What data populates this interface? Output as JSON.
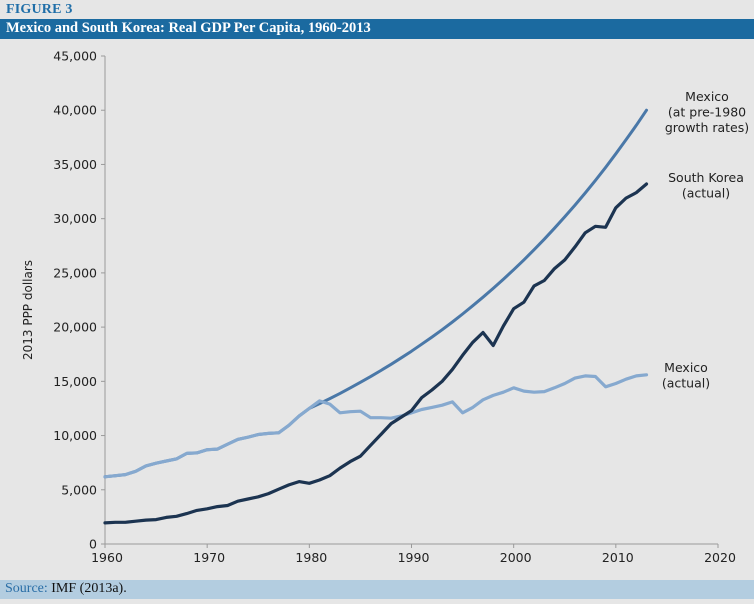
{
  "figure": {
    "label": "FIGURE 3",
    "title": "Mexico and South Korea: Real GDP Per Capita, 1960-2013"
  },
  "source": {
    "label": "Source:",
    "text": " IMF (2013a)."
  },
  "colors": {
    "title_bar": "#1b6aa0",
    "source_bar": "#b3cde0",
    "mexico_counterfactual": "#4a78a8",
    "south_korea": "#1c3451",
    "mexico_actual": "#86a9cf"
  },
  "chart_data": {
    "type": "line",
    "title": "Mexico and South Korea: Real GDP Per Capita, 1960-2013",
    "xlabel": "",
    "ylabel": "2013 PPP dollars",
    "xlim": [
      1960,
      2020
    ],
    "ylim": [
      0,
      45000
    ],
    "xticks": [
      1960,
      1970,
      1980,
      1990,
      2000,
      2010,
      2020
    ],
    "xtick_labels": [
      "1960",
      "1970",
      "1980",
      "1990",
      "2000",
      "2010",
      "2020"
    ],
    "yticks": [
      0,
      5000,
      10000,
      15000,
      20000,
      25000,
      30000,
      35000,
      40000,
      45000
    ],
    "ytick_labels": [
      "0",
      "5,000",
      "10,000",
      "15,000",
      "20,000",
      "25,000",
      "30,000",
      "35,000",
      "40,000",
      "45,000"
    ],
    "grid": false,
    "legend": "inline labels at right end of each series",
    "series": [
      {
        "key": "mexico_counterfactual",
        "name": "Mexico (at pre-1980 growth rates)",
        "label_lines": [
          "Mexico",
          "(at pre-1980",
          "growth rates)"
        ],
        "x": [
          1960,
          1961,
          1962,
          1963,
          1964,
          1965,
          1966,
          1967,
          1968,
          1969,
          1970,
          1971,
          1972,
          1973,
          1974,
          1975,
          1976,
          1977,
          1978,
          1979,
          1980,
          1981,
          1982,
          1983,
          1984,
          1985,
          1986,
          1987,
          1988,
          1989,
          1990,
          1991,
          1992,
          1993,
          1994,
          1995,
          1996,
          1997,
          1998,
          1999,
          2000,
          2001,
          2002,
          2003,
          2004,
          2005,
          2006,
          2007,
          2008,
          2009,
          2010,
          2011,
          2012,
          2013
        ],
        "values": [
          6200,
          6300,
          6400,
          6700,
          7200,
          7450,
          7650,
          7850,
          8350,
          8400,
          8700,
          8750,
          9200,
          9650,
          9850,
          10100,
          10200,
          10250,
          10950,
          11800,
          12500,
          12950,
          13410,
          13890,
          14390,
          14910,
          15440,
          16000,
          16570,
          17170,
          17780,
          18420,
          19080,
          19760,
          20470,
          21210,
          21970,
          22760,
          23570,
          24420,
          25290,
          26200,
          27140,
          28110,
          29120,
          30170,
          31250,
          32370,
          33530,
          34730,
          35980,
          37270,
          38610,
          40000
        ]
      },
      {
        "key": "south_korea",
        "name": "South Korea (actual)",
        "label_lines": [
          "South Korea",
          "(actual)"
        ],
        "x": [
          1960,
          1961,
          1962,
          1963,
          1964,
          1965,
          1966,
          1967,
          1968,
          1969,
          1970,
          1971,
          1972,
          1973,
          1974,
          1975,
          1976,
          1977,
          1978,
          1979,
          1980,
          1981,
          1982,
          1983,
          1984,
          1985,
          1986,
          1987,
          1988,
          1989,
          1990,
          1991,
          1992,
          1993,
          1994,
          1995,
          1996,
          1997,
          1998,
          1999,
          2000,
          2001,
          2002,
          2003,
          2004,
          2005,
          2006,
          2007,
          2008,
          2009,
          2010,
          2011,
          2012,
          2013
        ],
        "values": [
          1950,
          2000,
          2000,
          2100,
          2200,
          2250,
          2450,
          2550,
          2800,
          3100,
          3250,
          3450,
          3550,
          3950,
          4150,
          4350,
          4650,
          5050,
          5450,
          5750,
          5600,
          5900,
          6300,
          7000,
          7600,
          8100,
          9100,
          10100,
          11100,
          11700,
          12300,
          13500,
          14200,
          15000,
          16100,
          17400,
          18600,
          19500,
          18300,
          20100,
          21700,
          22300,
          23800,
          24300,
          25400,
          26200,
          27400,
          28700,
          29300,
          29200,
          31000,
          31900,
          32400,
          33200
        ]
      },
      {
        "key": "mexico_actual",
        "name": "Mexico (actual)",
        "label_lines": [
          "Mexico",
          "(actual)"
        ],
        "x": [
          1960,
          1961,
          1962,
          1963,
          1964,
          1965,
          1966,
          1967,
          1968,
          1969,
          1970,
          1971,
          1972,
          1973,
          1974,
          1975,
          1976,
          1977,
          1978,
          1979,
          1980,
          1981,
          1982,
          1983,
          1984,
          1985,
          1986,
          1987,
          1988,
          1989,
          1990,
          1991,
          1992,
          1993,
          1994,
          1995,
          1996,
          1997,
          1998,
          1999,
          2000,
          2001,
          2002,
          2003,
          2004,
          2005,
          2006,
          2007,
          2008,
          2009,
          2010,
          2011,
          2012,
          2013
        ],
        "values": [
          6200,
          6300,
          6400,
          6700,
          7200,
          7450,
          7650,
          7850,
          8350,
          8400,
          8700,
          8750,
          9200,
          9650,
          9850,
          10100,
          10200,
          10250,
          10950,
          11800,
          12500,
          13200,
          12900,
          12100,
          12200,
          12250,
          11650,
          11650,
          11600,
          11800,
          12100,
          12400,
          12600,
          12800,
          13100,
          12100,
          12600,
          13300,
          13700,
          14000,
          14400,
          14100,
          14000,
          14050,
          14400,
          14800,
          15300,
          15500,
          15450,
          14500,
          14800,
          15200,
          15500,
          15600
        ]
      }
    ]
  }
}
